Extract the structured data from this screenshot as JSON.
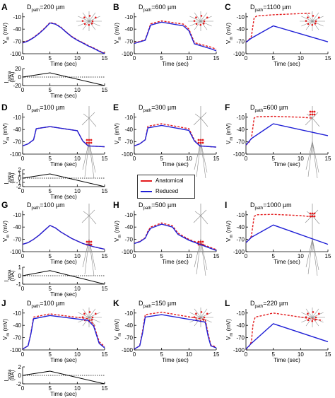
{
  "legend": {
    "anatomical": "Anatomical",
    "reduced": "Reduced"
  },
  "colors": {
    "anatomical": "#e31a1c",
    "reduced": "#1f1fd6",
    "current": "#000000",
    "neuron": "#8a8a8a",
    "synapse": "#e31a1c"
  },
  "axes_text": {
    "time_label": "Time (sec)",
    "vm_label": "V",
    "vm_sub": "m",
    "vm_unit": " (mV)",
    "isoma_label": "I",
    "isoma_sub": "soma",
    "isoma_unit": "(nA)",
    "dpath_main": "D",
    "dpath_sub": "path"
  },
  "chart_data": [
    {
      "panel": "A",
      "type": "line",
      "dpath": "=200 µm",
      "xlabel": "Time (sec)",
      "ylabel": "Vm (mV)",
      "xlim": [
        0,
        15
      ],
      "ylim": [
        -100,
        0
      ],
      "xticks": [
        0,
        5,
        10,
        15
      ],
      "yticks": [
        -10,
        -40,
        -70,
        -100
      ],
      "series": [
        {
          "name": "Anatomical",
          "style": "dashed",
          "x": [
            0,
            1,
            2,
            3,
            4,
            5,
            6,
            7,
            8,
            9,
            10,
            11,
            12,
            13,
            14,
            15
          ],
          "y": [
            -73,
            -68,
            -60,
            -50,
            -38,
            -24,
            -27,
            -35,
            -47,
            -58,
            -66,
            -73,
            -80,
            -86,
            -93,
            -99
          ]
        },
        {
          "name": "Reduced",
          "style": "solid",
          "x": [
            0,
            1,
            2,
            3,
            4,
            5,
            6,
            7,
            8,
            9,
            10,
            11,
            12,
            13,
            14,
            15
          ],
          "y": [
            -74,
            -69,
            -61,
            -51,
            -39,
            -25,
            -28,
            -36,
            -48,
            -59,
            -67,
            -74,
            -81,
            -87,
            -94,
            -100
          ]
        }
      ]
    },
    {
      "panel": "A",
      "type": "line",
      "role": "current",
      "xlabel": "Time (sec)",
      "ylabel": "Isoma (nA)",
      "xlim": [
        0,
        15
      ],
      "ylim": [
        -20,
        20
      ],
      "xticks": [
        0,
        5,
        10,
        15
      ],
      "yticks": [
        20,
        0,
        -20
      ],
      "dotted_zero": true,
      "series": [
        {
          "name": "Isoma",
          "x": [
            0,
            5,
            15
          ],
          "y": [
            0,
            10,
            -20
          ]
        }
      ]
    },
    {
      "panel": "B",
      "type": "line",
      "dpath": "=600 µm",
      "xlabel": "Time (sec)",
      "ylabel": "Vm (mV)",
      "xlim": [
        0,
        15
      ],
      "ylim": [
        -100,
        0
      ],
      "xticks": [
        0,
        5,
        10,
        15
      ],
      "yticks": [
        -10,
        -40,
        -70,
        -100
      ],
      "series": [
        {
          "name": "Anatomical",
          "style": "dashed",
          "x": [
            0,
            2,
            3,
            5,
            9,
            10,
            11,
            14,
            15
          ],
          "y": [
            -74,
            -66,
            -27,
            -20,
            -28,
            -40,
            -73,
            -84,
            -89
          ]
        },
        {
          "name": "Reduced",
          "style": "solid",
          "x": [
            0,
            2,
            3,
            5,
            9,
            10,
            11,
            14,
            15
          ],
          "y": [
            -75,
            -67,
            -30,
            -23,
            -32,
            -44,
            -76,
            -88,
            -93
          ]
        }
      ]
    },
    {
      "panel": "C",
      "type": "line",
      "dpath": "=1100 µm",
      "xlabel": "Time (sec)",
      "ylabel": "Vm (mV)",
      "xlim": [
        0,
        15
      ],
      "ylim": [
        -100,
        0
      ],
      "xticks": [
        0,
        5,
        10,
        15
      ],
      "yticks": [
        -10,
        -40,
        -70,
        -100
      ],
      "series": [
        {
          "name": "Anatomical",
          "style": "dashed",
          "x": [
            0,
            0.5,
            1,
            1.5,
            2,
            5,
            10,
            12
          ],
          "y": [
            -72,
            -66,
            -58,
            -12,
            -8,
            -5,
            -2,
            -1
          ]
        },
        {
          "name": "Reduced",
          "style": "solid",
          "x": [
            0,
            1,
            5,
            15
          ],
          "y": [
            -72,
            -62,
            -32,
            -71
          ]
        }
      ]
    },
    {
      "panel": "D",
      "type": "line",
      "dpath": "=100 µm",
      "xlabel": "Time (sec)",
      "ylabel": "Vm (mV)",
      "xlim": [
        0,
        15
      ],
      "ylim": [
        -100,
        0
      ],
      "xticks": [
        0,
        5,
        10,
        15
      ],
      "yticks": [
        -10,
        -40,
        -70,
        -100
      ],
      "series": [
        {
          "name": "Anatomical",
          "style": "dashed",
          "x": [
            0,
            1,
            2,
            2.5,
            5,
            10,
            11,
            12,
            15
          ],
          "y": [
            -80,
            -75,
            -65,
            -38,
            -33,
            -43,
            -68,
            -80,
            -82
          ]
        },
        {
          "name": "Reduced",
          "style": "solid",
          "x": [
            0,
            1,
            2,
            2.5,
            5,
            10,
            11,
            12,
            15
          ],
          "y": [
            -80,
            -75,
            -65,
            -38,
            -33,
            -43,
            -68,
            -80,
            -82
          ]
        }
      ]
    },
    {
      "panel": "D",
      "type": "line",
      "role": "current",
      "xlabel": "Time (sec)",
      "ylabel": "Isoma (nA)",
      "xlim": [
        0,
        15
      ],
      "ylim": [
        -2,
        2
      ],
      "xticks": [
        0,
        5,
        10,
        15
      ],
      "yticks": [
        2,
        1,
        0,
        -1,
        -2
      ],
      "dotted_zero": true,
      "series": [
        {
          "name": "Isoma",
          "x": [
            0,
            5,
            15
          ],
          "y": [
            0,
            1,
            -2
          ]
        }
      ]
    },
    {
      "panel": "E",
      "type": "line",
      "dpath": "=300 µm",
      "xlabel": "Time (sec)",
      "ylabel": "Vm (mV)",
      "xlim": [
        0,
        15
      ],
      "ylim": [
        -100,
        0
      ],
      "xticks": [
        0,
        5,
        10,
        15
      ],
      "yticks": [
        -10,
        -40,
        -70,
        -100
      ],
      "series": [
        {
          "name": "Anatomical",
          "style": "dashed",
          "x": [
            0,
            1,
            2,
            2.5,
            5,
            10,
            11,
            12,
            15
          ],
          "y": [
            -80,
            -75,
            -65,
            -32,
            -26,
            -38,
            -66,
            -80,
            -83
          ]
        },
        {
          "name": "Reduced",
          "style": "solid",
          "x": [
            0,
            1,
            2,
            2.5,
            5,
            10,
            11,
            12,
            15
          ],
          "y": [
            -80,
            -75,
            -65,
            -36,
            -30,
            -42,
            -68,
            -80,
            -83
          ]
        }
      ]
    },
    {
      "panel": "F",
      "type": "line",
      "dpath": "=600 µm",
      "xlabel": "Time (sec)",
      "ylabel": "Vm (mV)",
      "xlim": [
        0,
        15
      ],
      "ylim": [
        -100,
        0
      ],
      "xticks": [
        0,
        5,
        10,
        15
      ],
      "yticks": [
        -10,
        -40,
        -70,
        -100
      ],
      "series": [
        {
          "name": "Anatomical",
          "style": "dashed",
          "x": [
            0,
            0.5,
            1,
            1.5,
            2,
            5,
            10,
            12
          ],
          "y": [
            -78,
            -72,
            -62,
            -12,
            -9,
            -8,
            -10,
            -12
          ]
        },
        {
          "name": "Reduced",
          "style": "solid",
          "x": [
            0,
            1,
            5,
            15
          ],
          "y": [
            -78,
            -62,
            -26,
            -55
          ]
        }
      ]
    },
    {
      "panel": "G",
      "type": "line",
      "dpath": "=100 µm",
      "xlabel": "Time (sec)",
      "ylabel": "Vm (mV)",
      "xlim": [
        0,
        15
      ],
      "ylim": [
        -100,
        0
      ],
      "xticks": [
        0,
        5,
        10,
        15
      ],
      "yticks": [
        -10,
        -40,
        -70,
        -100
      ],
      "series": [
        {
          "name": "Anatomical",
          "style": "dashed",
          "x": [
            0,
            1,
            2,
            3,
            4,
            5,
            6,
            7,
            8,
            9,
            10,
            11,
            12,
            13,
            14,
            15
          ],
          "y": [
            -82,
            -78,
            -70,
            -60,
            -48,
            -36,
            -42,
            -52,
            -60,
            -68,
            -74,
            -80,
            -84,
            -88,
            -91,
            -94
          ]
        },
        {
          "name": "Reduced",
          "style": "solid",
          "x": [
            0,
            1,
            2,
            3,
            4,
            5,
            6,
            7,
            8,
            9,
            10,
            11,
            12,
            13,
            14,
            15
          ],
          "y": [
            -82,
            -78,
            -70,
            -60,
            -48,
            -36,
            -42,
            -52,
            -60,
            -68,
            -74,
            -80,
            -84,
            -88,
            -91,
            -94
          ]
        }
      ]
    },
    {
      "panel": "G",
      "type": "line",
      "role": "current",
      "xlabel": "Time (sec)",
      "ylabel": "Isoma (nA)",
      "xlim": [
        0,
        15
      ],
      "ylim": [
        -1,
        1
      ],
      "xticks": [
        0,
        5,
        10,
        15
      ],
      "yticks": [
        1,
        0,
        -1
      ],
      "dotted_zero": true,
      "series": [
        {
          "name": "Isoma",
          "x": [
            0,
            5,
            15
          ],
          "y": [
            0,
            0.6,
            -1
          ]
        }
      ]
    },
    {
      "panel": "H",
      "type": "line",
      "dpath": "=500 µm",
      "xlabel": "Time (sec)",
      "ylabel": "Vm (mV)",
      "xlim": [
        0,
        15
      ],
      "ylim": [
        -100,
        0
      ],
      "xticks": [
        0,
        5,
        10,
        15
      ],
      "yticks": [
        -10,
        -40,
        -70,
        -100
      ],
      "series": [
        {
          "name": "Anatomical",
          "style": "dashed",
          "x": [
            0,
            1,
            2,
            2.5,
            3,
            5,
            7,
            8,
            10,
            15
          ],
          "y": [
            -80,
            -75,
            -66,
            -50,
            -40,
            -30,
            -37,
            -55,
            -70,
            -95
          ]
        },
        {
          "name": "Reduced",
          "style": "solid",
          "x": [
            0,
            1,
            2,
            2.5,
            3,
            5,
            7,
            8,
            10,
            15
          ],
          "y": [
            -80,
            -76,
            -67,
            -53,
            -43,
            -33,
            -40,
            -58,
            -72,
            -97
          ]
        }
      ]
    },
    {
      "panel": "I",
      "type": "line",
      "dpath": "=1000 µm",
      "xlabel": "Time (sec)",
      "ylabel": "Vm (mV)",
      "xlim": [
        0,
        15
      ],
      "ylim": [
        -100,
        0
      ],
      "xticks": [
        0,
        5,
        10,
        15
      ],
      "yticks": [
        -10,
        -40,
        -70,
        -100
      ],
      "series": [
        {
          "name": "Anatomical",
          "style": "dashed",
          "x": [
            0,
            0.5,
            1,
            1.5,
            2,
            5,
            10,
            12
          ],
          "y": [
            -78,
            -72,
            -62,
            -14,
            -10,
            -9,
            -12,
            -15
          ]
        },
        {
          "name": "Reduced",
          "style": "solid",
          "x": [
            0,
            1,
            5,
            15
          ],
          "y": [
            -78,
            -65,
            -35,
            -82
          ]
        }
      ]
    },
    {
      "panel": "J",
      "type": "line",
      "dpath": "=100 µm",
      "xlabel": "Time (sec)",
      "ylabel": "Vm (mV)",
      "xlim": [
        0,
        15
      ],
      "ylim": [
        -100,
        0
      ],
      "xticks": [
        0,
        5,
        10,
        15
      ],
      "yticks": [
        -10,
        -40,
        -70,
        -100
      ],
      "series": [
        {
          "name": "Anatomical",
          "style": "dashed",
          "x": [
            0,
            1,
            1.5,
            2,
            5,
            12,
            13,
            14,
            15
          ],
          "y": [
            -98,
            -90,
            -60,
            -20,
            -12,
            -24,
            -38,
            -80,
            -92
          ]
        },
        {
          "name": "Reduced",
          "style": "solid",
          "x": [
            0,
            1,
            1.5,
            2,
            5,
            12,
            13,
            14,
            15
          ],
          "y": [
            -98,
            -90,
            -62,
            -24,
            -16,
            -28,
            -42,
            -84,
            -95
          ]
        }
      ]
    },
    {
      "panel": "J",
      "type": "line",
      "role": "current",
      "xlabel": "Time (sec)",
      "ylabel": "Isoma (nA)",
      "xlim": [
        0,
        15
      ],
      "ylim": [
        -2,
        2
      ],
      "xticks": [
        0,
        5,
        10,
        15
      ],
      "yticks": [
        2,
        0,
        -2
      ],
      "dotted_zero": true,
      "series": [
        {
          "name": "Isoma",
          "x": [
            0,
            5,
            15
          ],
          "y": [
            0,
            1,
            -2
          ]
        }
      ]
    },
    {
      "panel": "K",
      "type": "line",
      "dpath": "=150 µm",
      "xlabel": "Time (sec)",
      "ylabel": "Vm (mV)",
      "xlim": [
        0,
        15
      ],
      "ylim": [
        -100,
        0
      ],
      "xticks": [
        0,
        5,
        10,
        15
      ],
      "yticks": [
        -10,
        -40,
        -70,
        -100
      ],
      "series": [
        {
          "name": "Anatomical",
          "style": "dashed",
          "x": [
            0,
            1,
            1.5,
            2,
            5,
            13,
            13.5,
            14,
            15
          ],
          "y": [
            -98,
            -90,
            -55,
            -14,
            -8,
            -26,
            -60,
            -88,
            -93
          ]
        },
        {
          "name": "Reduced",
          "style": "solid",
          "x": [
            0,
            1,
            1.5,
            2,
            5,
            13,
            13.5,
            14,
            15
          ],
          "y": [
            -98,
            -90,
            -60,
            -20,
            -14,
            -32,
            -66,
            -90,
            -95
          ]
        }
      ]
    },
    {
      "panel": "L",
      "type": "line",
      "dpath": "=220 µm",
      "xlabel": "Time (sec)",
      "ylabel": "Vm (mV)",
      "xlim": [
        0,
        15
      ],
      "ylim": [
        -100,
        0
      ],
      "xticks": [
        0,
        5,
        10,
        15
      ],
      "yticks": [
        -10,
        -40,
        -70,
        -100
      ],
      "series": [
        {
          "name": "Anatomical",
          "style": "dashed",
          "x": [
            0,
            0.5,
            1,
            1.3,
            1.7,
            5,
            10,
            14
          ],
          "y": [
            -98,
            -92,
            -80,
            -36,
            -20,
            -10,
            -20,
            -28
          ]
        },
        {
          "name": "Reduced",
          "style": "solid",
          "x": [
            0,
            1,
            5,
            15
          ],
          "y": [
            -98,
            -84,
            -36,
            -80
          ]
        }
      ]
    }
  ]
}
